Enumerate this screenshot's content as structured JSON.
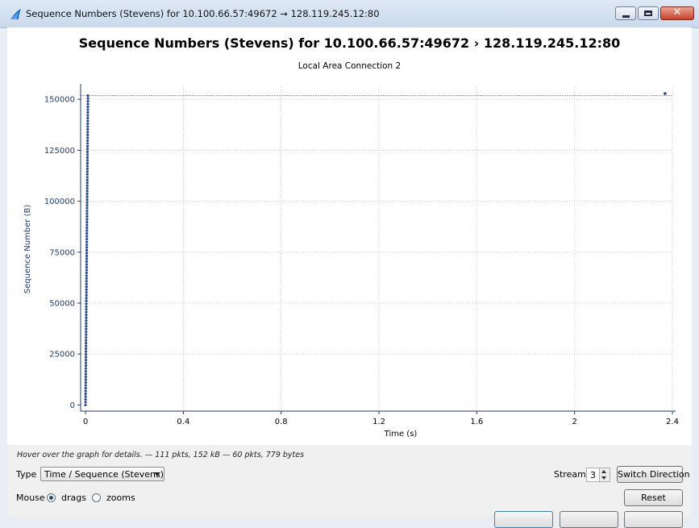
{
  "window": {
    "title": "Sequence Numbers (Stevens) for 10.100.66.57:49672 → 128.119.245.12:80",
    "icon": "wireshark-fin-icon",
    "buttons": {
      "minimize_icon": "minimize-icon",
      "maximize_icon": "maximize-icon",
      "close_label": "✕"
    }
  },
  "plot": {
    "title": "Sequence Numbers (Stevens) for 10.100.66.57:49672  › 128.119.245.12:80",
    "subtitle": "Local Area Connection 2"
  },
  "chart_data": {
    "type": "scatter",
    "title": "Sequence Numbers (Stevens) for 10.100.66.57:49672  › 128.119.245.12:80",
    "subtitle": "Local Area Connection 2",
    "xlabel": "Time (s)",
    "ylabel": "Sequence Number (B)",
    "xlim": [
      -0.02,
      2.4
    ],
    "ylim": [
      -3000,
      156000
    ],
    "xticks": [
      0,
      0.4,
      0.8,
      1.2,
      1.6,
      2,
      2.4
    ],
    "xtick_labels": [
      "0",
      "0.4",
      "0.8",
      "1.2",
      "1.6",
      "2",
      "2.4"
    ],
    "yticks": [
      0,
      25000,
      50000,
      75000,
      100000,
      125000,
      150000
    ],
    "ytick_labels": [
      "0",
      "25000",
      "50000",
      "75000",
      "100000",
      "125000",
      "150000"
    ],
    "grid": true,
    "series_color": "#2b4a8a",
    "initial_burst": {
      "count": 111,
      "t_start": 0.0,
      "t_end": 0.01,
      "seq_start": 1,
      "seq_end": 151800
    },
    "late_points": [
      {
        "x": 2.37,
        "y": 152800
      }
    ],
    "reference_lines": [
      {
        "y": 151800,
        "style": "dotted"
      }
    ]
  },
  "status": {
    "hint": "Hover over the graph for details. — 111 pkts, 152 kB — 60 pkts, 779 bytes"
  },
  "controls": {
    "type_label": "Type",
    "type_value": "Time / Sequence (Stevens)",
    "stream_label": "Stream",
    "stream_value": "3",
    "switch_direction_label": "Switch Direction",
    "mouse_label": "Mouse",
    "drags_label": "drags",
    "zooms_label": "zooms",
    "reset_label": "Reset"
  }
}
